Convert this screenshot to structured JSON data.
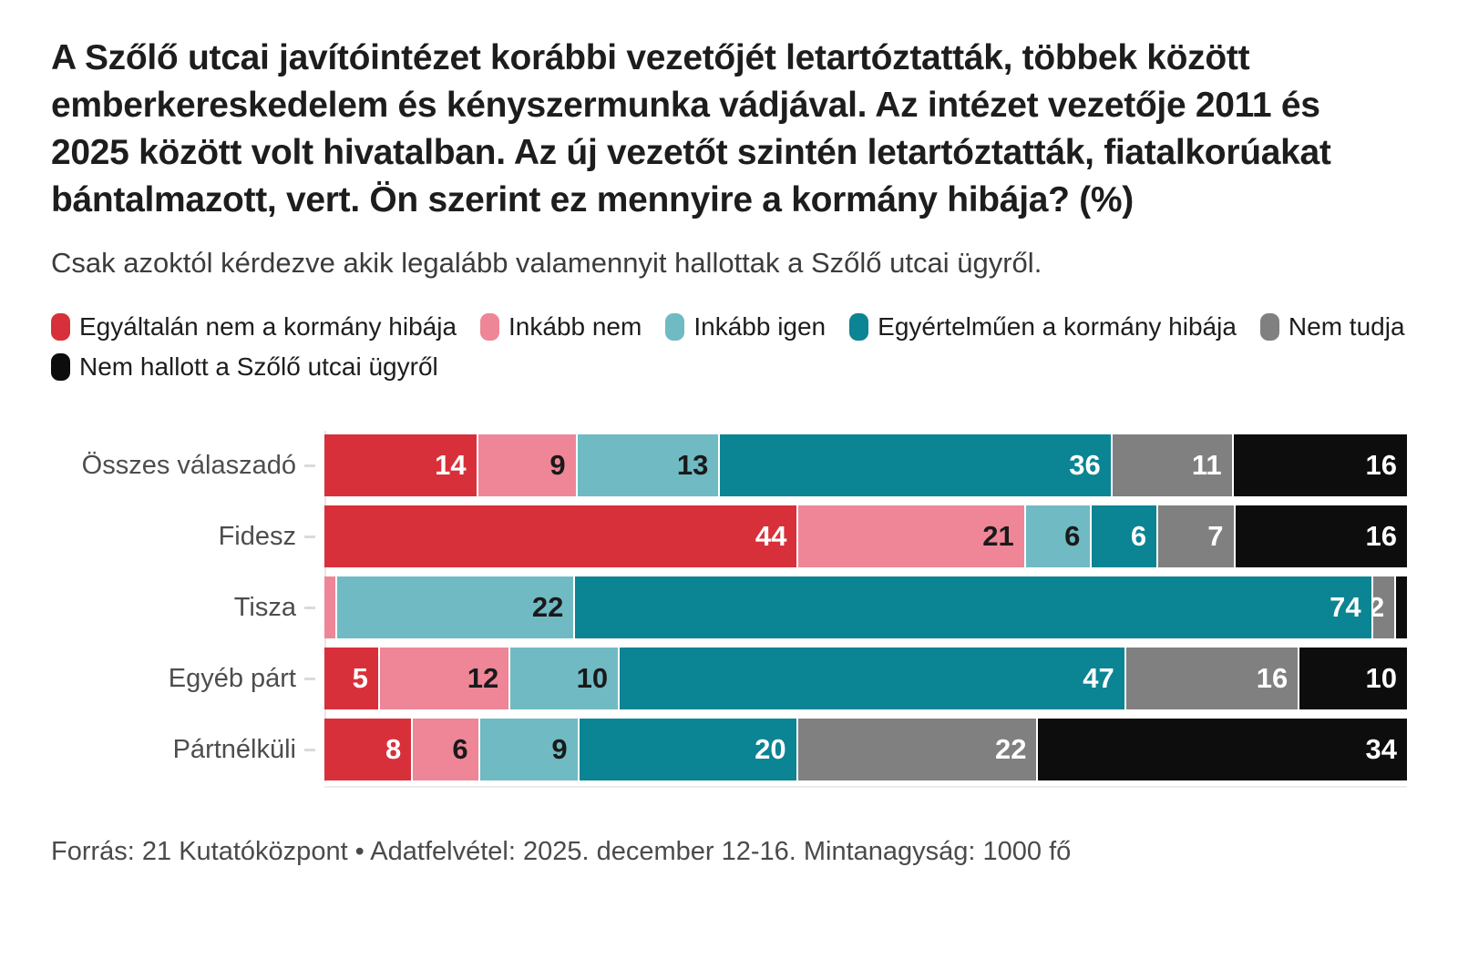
{
  "page": {
    "title": "A Szőlő utcai javítóintézet korábbi vezetőjét letartóztatták, többek között emberkereskedelem és kényszermunka vádjával. Az intézet vezetője 2011 és 2025 között volt hivatalban. Az új vezetőt szintén letartóztatták, fiatalkorúakat bántalmazott, vert. Ön szerint ez mennyire a kormány hibája? (%)",
    "subtitle": "Csak azoktól kérdezve akik legalább valamennyit hallottak a Szőlő utcai ügyről.",
    "footer": "Forrás: 21 Kutatóközpont • Adatfelvétel: 2025. december 12-16. Mintanagyság: 1000 fő"
  },
  "chart_data": {
    "type": "bar",
    "orientation": "horizontal-stacked",
    "unit": "%",
    "title": "Ön szerint ez mennyire a kormány hibája? (%)",
    "categories": [
      "Összes válaszadó",
      "Fidesz",
      "Tisza",
      "Egyéb párt",
      "Pártnélküli"
    ],
    "series": [
      {
        "name": "Egyáltalán nem a kormány hibája",
        "color": "#d8303a",
        "text_color": "#ffffff",
        "values": [
          14,
          44,
          0,
          5,
          8
        ]
      },
      {
        "name": "Inkább nem",
        "color": "#ee8698",
        "text_color": "#1a1a1a",
        "values": [
          9,
          21,
          1,
          12,
          6
        ]
      },
      {
        "name": "Inkább igen",
        "color": "#70bac3",
        "text_color": "#1a1a1a",
        "values": [
          13,
          6,
          22,
          10,
          9
        ]
      },
      {
        "name": "Egyértelműen a kormány hibája",
        "color": "#0b8493",
        "text_color": "#ffffff",
        "values": [
          36,
          6,
          74,
          47,
          20
        ]
      },
      {
        "name": "Nem tudja",
        "color": "#808080",
        "text_color": "#ffffff",
        "values": [
          11,
          7,
          2,
          16,
          22
        ]
      },
      {
        "name": "Nem hallott a Szőlő utcai ügyről",
        "color": "#0d0d0d",
        "text_color": "#ffffff",
        "values": [
          16,
          16,
          1,
          10,
          34
        ]
      }
    ],
    "label_min_value": 2,
    "xlim": [
      0,
      100
    ],
    "grid": false,
    "legend_position": "top"
  }
}
